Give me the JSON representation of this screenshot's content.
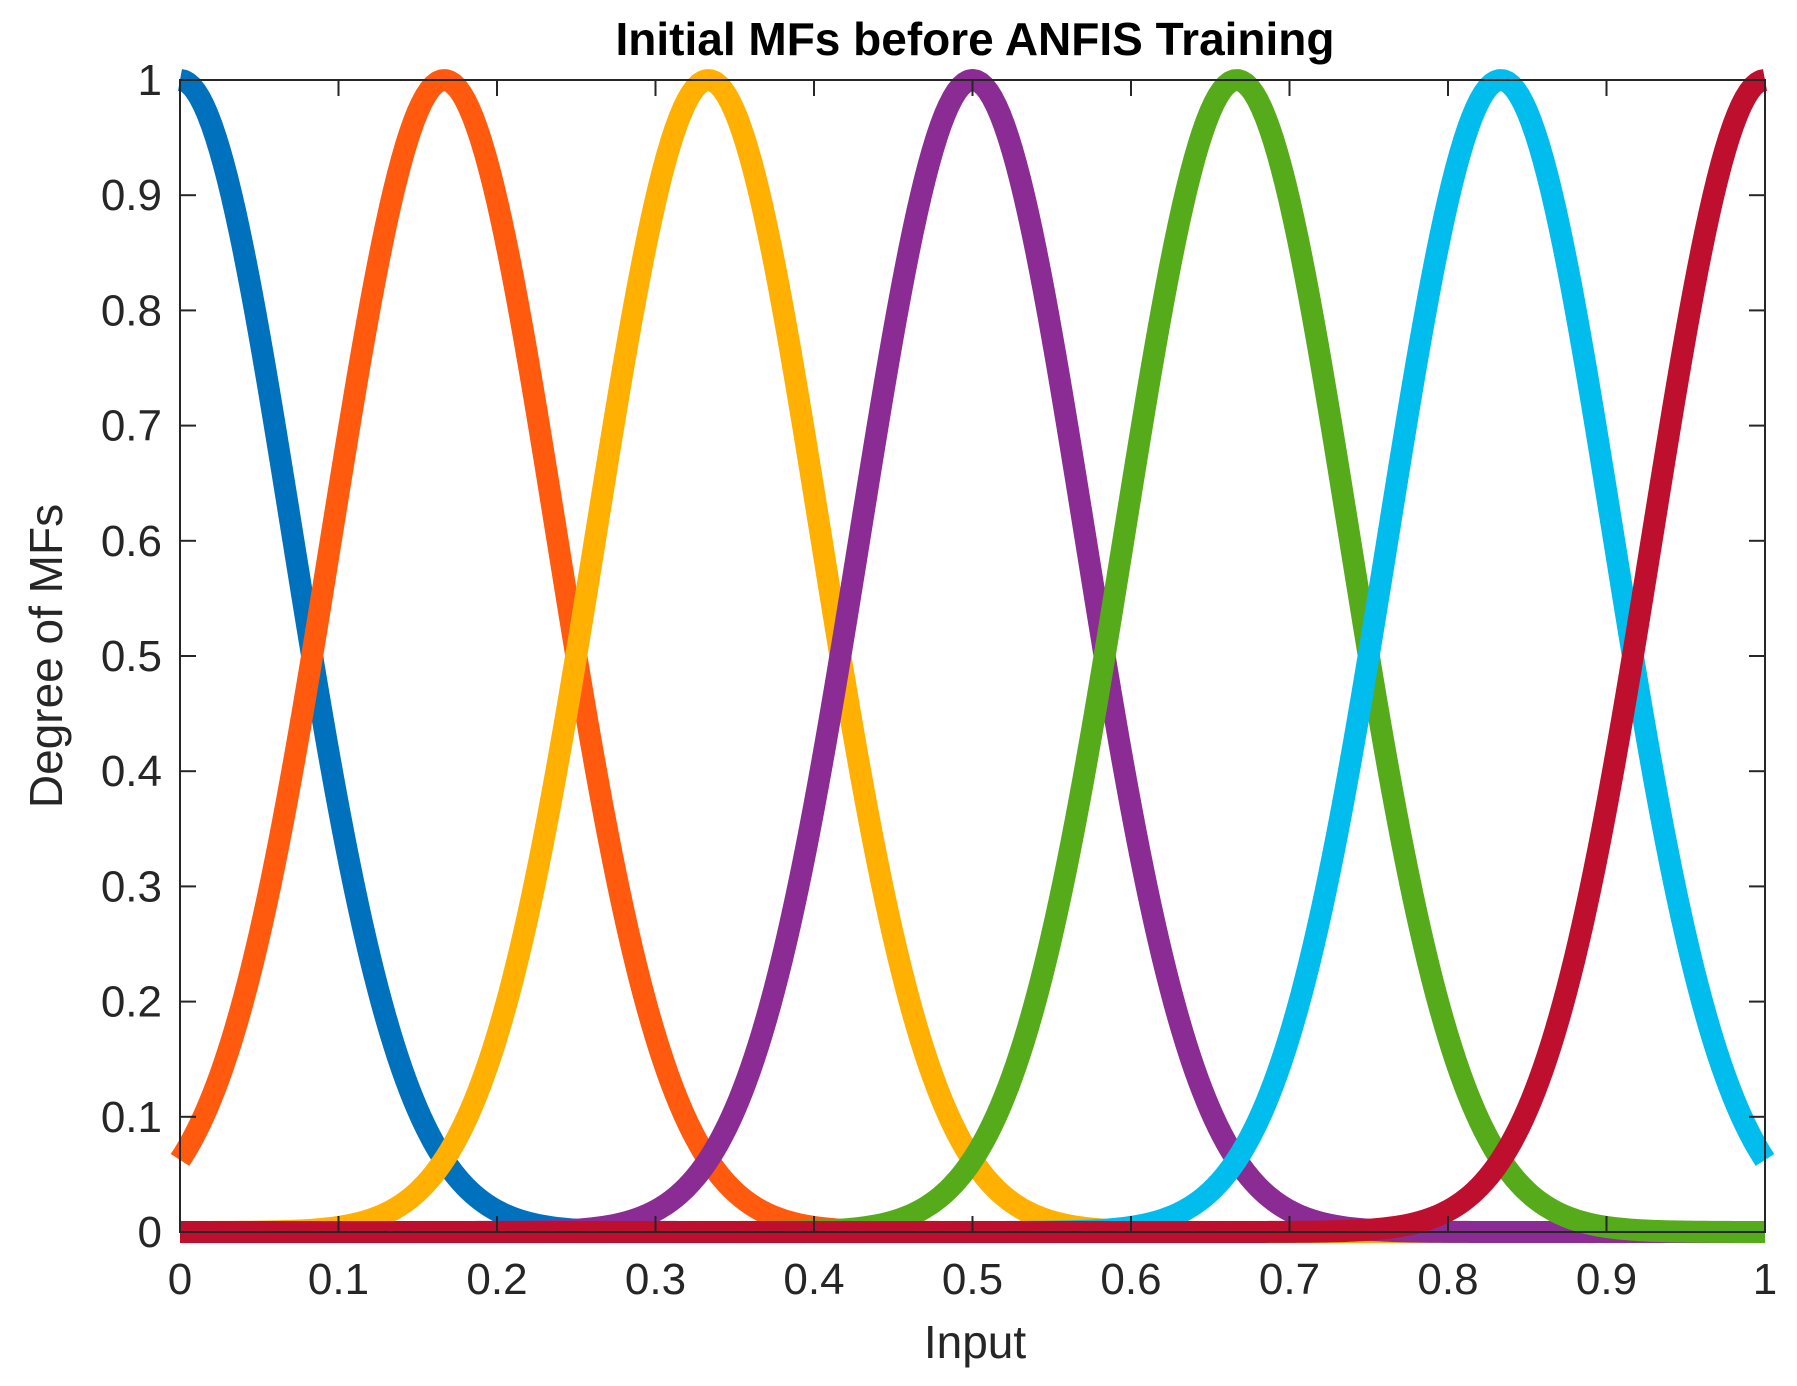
{
  "chart_data": {
    "type": "line",
    "title": "Initial MFs before ANFIS Training",
    "xlabel": "Input",
    "ylabel": "Degree of MFs",
    "xlim": [
      0,
      1
    ],
    "ylim": [
      0,
      1
    ],
    "grid": false,
    "legend": "none",
    "x_ticks": [
      "0",
      "0.1",
      "0.2",
      "0.3",
      "0.4",
      "0.5",
      "0.6",
      "0.7",
      "0.8",
      "0.9",
      "1"
    ],
    "y_ticks": [
      "0",
      "0.1",
      "0.2",
      "0.3",
      "0.4",
      "0.5",
      "0.6",
      "0.7",
      "0.8",
      "0.9",
      "1"
    ],
    "mf_shape": "gaussian",
    "sigma": 0.0708,
    "series": [
      {
        "center": 0.0,
        "color": "#0072BD"
      },
      {
        "center": 0.1667,
        "color": "#FF5A0D"
      },
      {
        "center": 0.3333,
        "color": "#FFB000"
      },
      {
        "center": 0.5,
        "color": "#8B2C94"
      },
      {
        "center": 0.6667,
        "color": "#56AB1B"
      },
      {
        "center": 0.8333,
        "color": "#00BDEE"
      },
      {
        "center": 1.0,
        "color": "#BF0F2E"
      }
    ]
  }
}
